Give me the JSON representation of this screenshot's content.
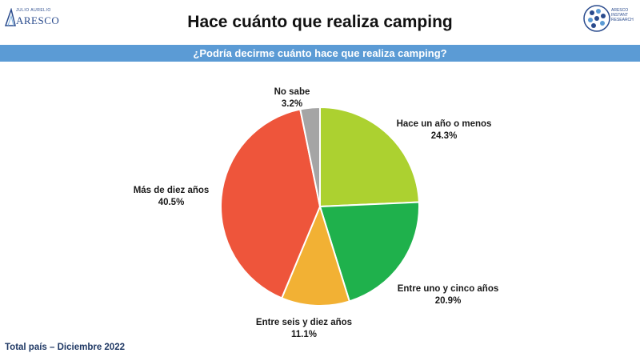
{
  "header": {
    "logo_left_top": "JULIO AURELIO",
    "logo_left_brand": "ARESCO",
    "logo_right_label": "ARESCO INSTANT RESEARCH",
    "title": "Hace cuánto que realiza camping",
    "question": "¿Podría decirme cuánto hace que realiza camping?"
  },
  "chart_data": {
    "type": "pie",
    "slices": [
      {
        "label": "Hace un año o menos",
        "value": 24.3,
        "display": "24.3%",
        "color": "#acd130"
      },
      {
        "label": "Entre uno y cinco años",
        "value": 20.9,
        "display": "20.9%",
        "color": "#1fb14c"
      },
      {
        "label": "Entre seis y diez años",
        "value": 11.1,
        "display": "11.1%",
        "color": "#f2b134"
      },
      {
        "label": "Más de diez años",
        "value": 40.5,
        "display": "40.5%",
        "color": "#ee553b"
      },
      {
        "label": "No sabe",
        "value": 3.2,
        "display": "3.2%",
        "color": "#a5a5a5"
      }
    ]
  },
  "footer": {
    "note": "Total país – Diciembre 2022"
  }
}
